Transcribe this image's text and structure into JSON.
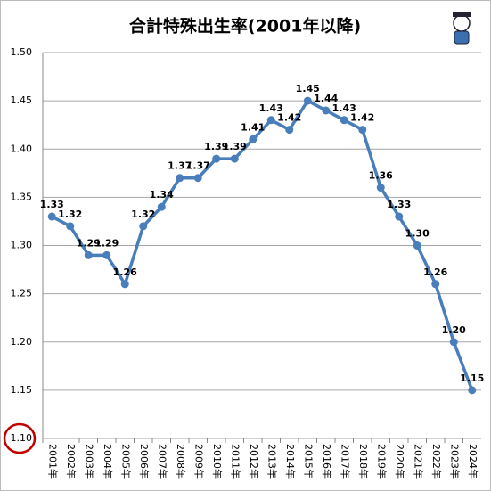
{
  "chart_data": {
    "type": "line",
    "title": "合計特殊出生率(2001年以降)",
    "categories": [
      "2001年",
      "2002年",
      "2003年",
      "2004年",
      "2005年",
      "2006年",
      "2007年",
      "2008年",
      "2009年",
      "2010年",
      "2011年",
      "2012年",
      "2013年",
      "2014年",
      "2015年",
      "2016年",
      "2017年",
      "2018年",
      "2019年",
      "2020年",
      "2021年",
      "2022年",
      "2023年",
      "2024年"
    ],
    "series": [
      {
        "name": "合計特殊出生率",
        "color": "#4a7ebb",
        "values": [
          1.33,
          1.32,
          1.29,
          1.29,
          1.26,
          1.32,
          1.34,
          1.37,
          1.37,
          1.39,
          1.39,
          1.41,
          1.43,
          1.42,
          1.45,
          1.44,
          1.43,
          1.42,
          1.36,
          1.33,
          1.3,
          1.26,
          1.2,
          1.15
        ],
        "value_labels": [
          "1.33",
          "1.32",
          "1.29",
          "1.29",
          "1.26",
          "1.32",
          "1.34",
          "1.37",
          "1.37",
          "1.39",
          "1.39",
          "1.41",
          "1.43",
          "1.42",
          "1.45",
          "1.44",
          "1.43",
          "1.42",
          "1.36",
          "1.33",
          "1.30",
          "1.26",
          "1.20",
          "1.15"
        ]
      }
    ],
    "ylim": [
      1.1,
      1.5
    ],
    "yticks": [
      {
        "value": 1.1,
        "label": "1.10"
      },
      {
        "value": 1.15,
        "label": "1.15"
      },
      {
        "value": 1.2,
        "label": "1.20"
      },
      {
        "value": 1.25,
        "label": "1.25"
      },
      {
        "value": 1.3,
        "label": "1.30"
      },
      {
        "value": 1.35,
        "label": "1.35"
      },
      {
        "value": 1.4,
        "label": "1.40"
      },
      {
        "value": 1.45,
        "label": "1.45"
      },
      {
        "value": 1.5,
        "label": "1.50"
      }
    ],
    "grid": true
  }
}
